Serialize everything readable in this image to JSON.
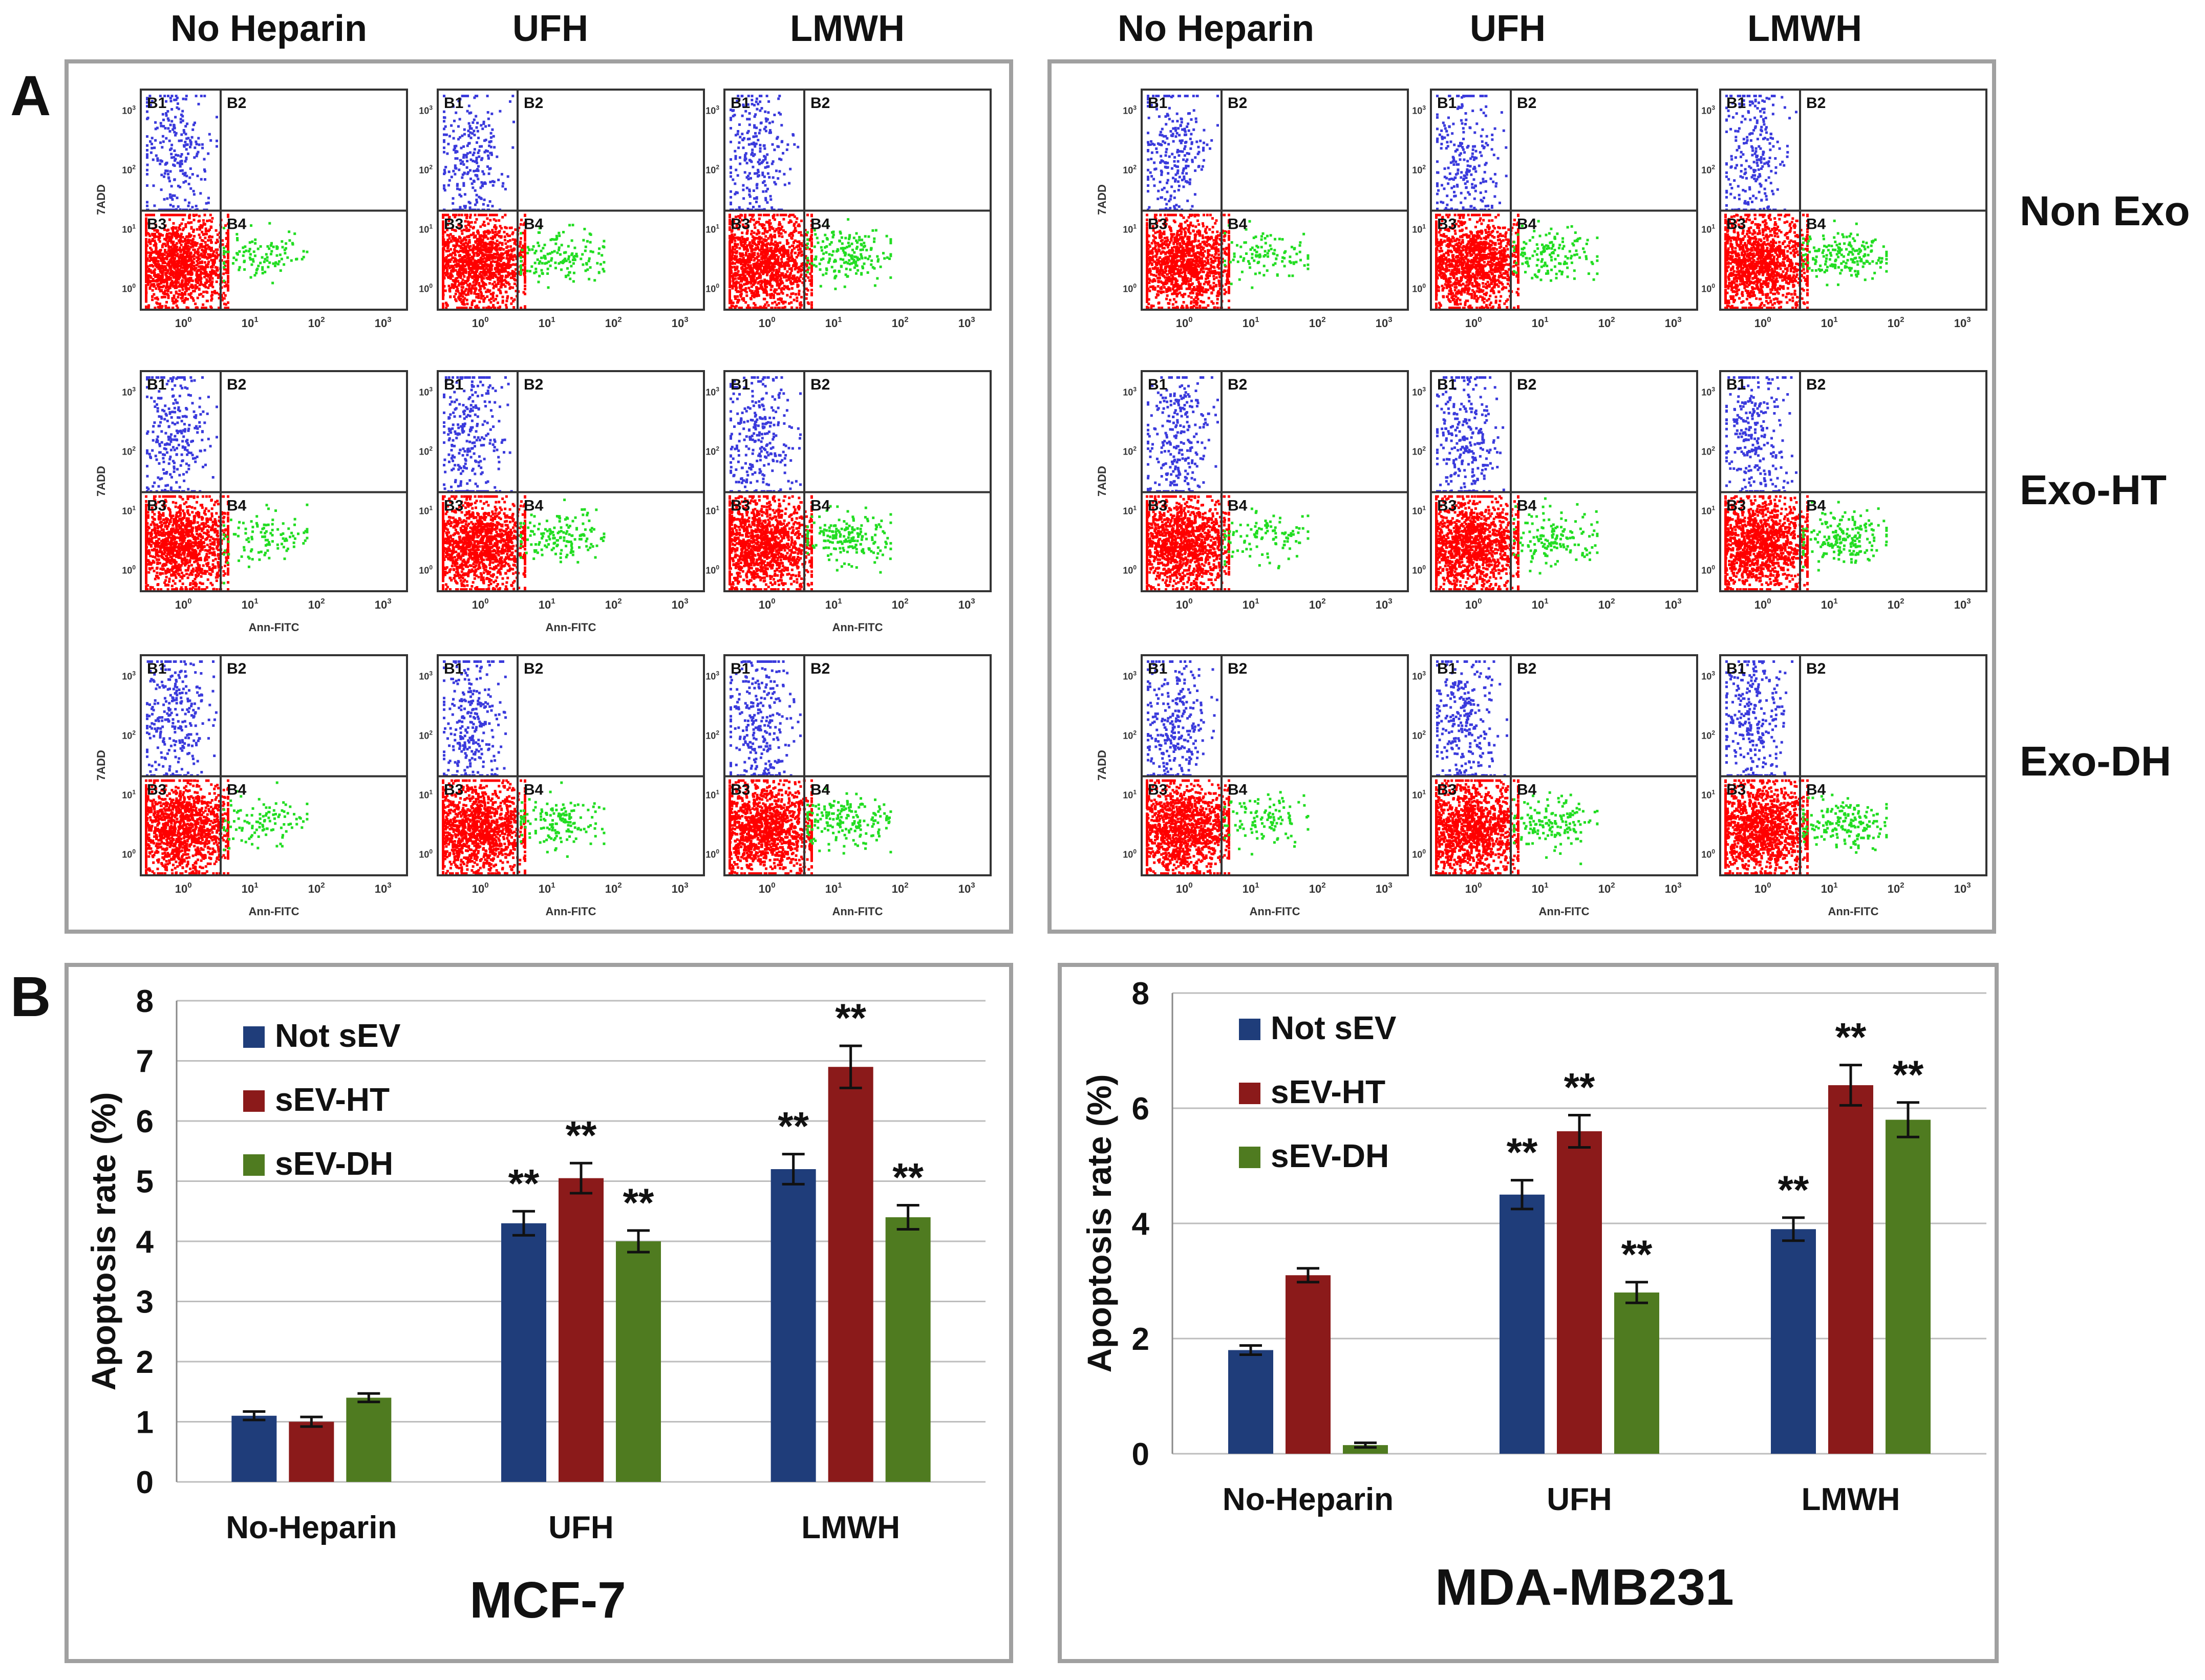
{
  "panel_a": {
    "panel_letter": "A",
    "column_labels": [
      "No Heparin",
      "UFH",
      "LMWH"
    ],
    "row_labels": [
      "Non Exo",
      "Exo-HT",
      "Exo-DH"
    ],
    "quadrant_labels": [
      "B1",
      "B2",
      "B3",
      "B4"
    ],
    "y_axis_label": "7ADD",
    "x_axis_label": "Ann-FITC",
    "tick_label": "10",
    "tick_powers": [
      "0",
      "1",
      "2",
      "3"
    ],
    "colors": {
      "upper_left": "#3a3adc",
      "lower_left": "#ff0000",
      "lower_right": "#22dd22"
    }
  },
  "panel_b": {
    "panel_letter": "B"
  },
  "chart_data": [
    {
      "type": "bar",
      "title": "MCF-7",
      "ylabel": "Apoptosis rate (%)",
      "xlabel": "",
      "ylim": [
        0,
        8
      ],
      "yticks": [
        0,
        1,
        2,
        3,
        4,
        5,
        6,
        7,
        8
      ],
      "grid": true,
      "legend_position": "top-left",
      "categories": [
        "No-Heparin",
        "UFH",
        "LMWH"
      ],
      "series": [
        {
          "name": "Not sEV",
          "color": "#1f3d7a",
          "values": [
            1.1,
            4.3,
            5.2
          ],
          "errors": [
            0.07,
            0.2,
            0.25
          ],
          "annotations": [
            "",
            "**",
            "**"
          ]
        },
        {
          "name": "sEV-HT",
          "color": "#8b1a1a",
          "values": [
            1.0,
            5.05,
            6.9
          ],
          "errors": [
            0.08,
            0.25,
            0.35
          ],
          "annotations": [
            "",
            "**",
            "**"
          ]
        },
        {
          "name": "sEV-DH",
          "color": "#4f7b20",
          "values": [
            1.4,
            4.0,
            4.4
          ],
          "errors": [
            0.07,
            0.18,
            0.2
          ],
          "annotations": [
            "",
            "**",
            "**"
          ]
        }
      ]
    },
    {
      "type": "bar",
      "title": "MDA-MB231",
      "ylabel": "Apoptosis rate (%)",
      "xlabel": "",
      "ylim": [
        0,
        8
      ],
      "yticks": [
        0,
        2,
        4,
        6,
        8
      ],
      "grid": true,
      "legend_position": "top-left",
      "categories": [
        "No-Heparin",
        "UFH",
        "LMWH"
      ],
      "series": [
        {
          "name": "Not sEV",
          "color": "#1f3d7a",
          "values": [
            1.8,
            4.5,
            3.9
          ],
          "errors": [
            0.08,
            0.25,
            0.2
          ],
          "annotations": [
            "",
            "**",
            "**"
          ]
        },
        {
          "name": "sEV-HT",
          "color": "#8b1a1a",
          "values": [
            3.1,
            5.6,
            6.4
          ],
          "errors": [
            0.12,
            0.28,
            0.35
          ],
          "annotations": [
            "",
            "**",
            "**"
          ]
        },
        {
          "name": "sEV-DH",
          "color": "#4f7b20",
          "values": [
            0.15,
            2.8,
            5.8
          ],
          "errors": [
            0.04,
            0.18,
            0.3
          ],
          "annotations": [
            "",
            "**",
            "**"
          ]
        }
      ]
    }
  ]
}
